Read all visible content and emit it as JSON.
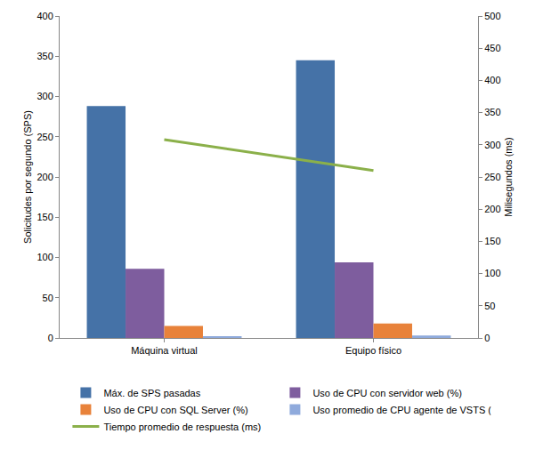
{
  "chart_data": {
    "type": "bar",
    "categories": [
      "Máquina virtual",
      "Equipo físico"
    ],
    "series": [
      {
        "name": "Máx. de SPS pasadas",
        "color": "#4572a7",
        "values": [
          288,
          345
        ]
      },
      {
        "name": "Uso de CPU con servidor web (%)",
        "color": "#7e5d9e",
        "values": [
          86,
          94
        ]
      },
      {
        "name": "Uso de CPU con SQL Server (%)",
        "color": "#e8823a",
        "values": [
          15,
          18
        ]
      },
      {
        "name": "Uso promedio de CPU agente de VSTS (%)",
        "color": "#8faadc",
        "values": [
          2,
          3
        ]
      },
      {
        "name": "Tiempo promedio de respuesta (ms)",
        "color": "#8bb04a",
        "values": [
          308,
          260
        ],
        "type": "line",
        "axis": "y2"
      }
    ],
    "y_label": "Solicitudes por segundo (SPS)",
    "y2_label": "Milisegundos (ms)",
    "ylim": [
      0,
      400
    ],
    "yticks": [
      0,
      50,
      100,
      150,
      200,
      250,
      300,
      350,
      400
    ],
    "y2lim": [
      0,
      500
    ],
    "y2ticks": [
      0,
      50,
      100,
      150,
      200,
      250,
      300,
      350,
      400,
      450,
      500
    ],
    "grid": false,
    "legend": "bottom"
  }
}
